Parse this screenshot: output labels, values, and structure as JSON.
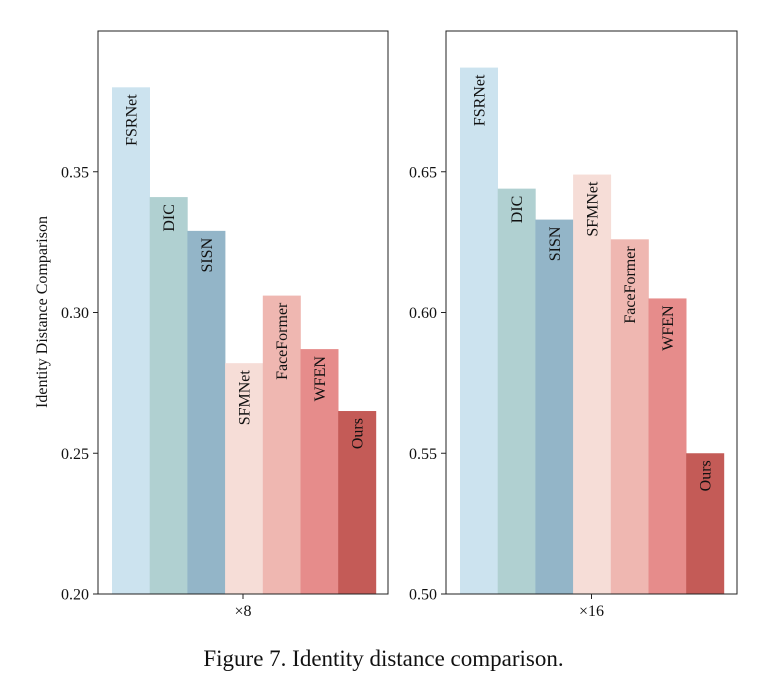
{
  "caption": "Figure 7. Identity distance comparison.",
  "ylabel": "Identity Distance Comparison",
  "chart_data": [
    {
      "type": "bar",
      "xlabel": "×8",
      "ylabel": "Identity Distance Comparison",
      "ylim": [
        0.2,
        0.4
      ],
      "yticks": [
        "0.20",
        "0.25",
        "0.30",
        "0.35"
      ],
      "categories": [
        "FSRNet",
        "DIC",
        "SISN",
        "SFMNet",
        "FaceFormer",
        "WFEN",
        "Ours"
      ],
      "values": [
        0.38,
        0.341,
        0.329,
        0.282,
        0.306,
        0.287,
        0.265
      ],
      "colors": [
        "#cce3ef",
        "#b0d0d1",
        "#93b5c8",
        "#f6ddd7",
        "#efb7b1",
        "#e68c8b",
        "#c45b57"
      ],
      "grid": false,
      "legend": "none"
    },
    {
      "type": "bar",
      "xlabel": "×16",
      "ylabel": "",
      "ylim": [
        0.5,
        0.7
      ],
      "yticks": [
        "0.50",
        "0.55",
        "0.60",
        "0.65"
      ],
      "categories": [
        "FSRNet",
        "DIC",
        "SISN",
        "SFMNet",
        "FaceFormer",
        "WFEN",
        "Ours"
      ],
      "values": [
        0.687,
        0.644,
        0.633,
        0.649,
        0.626,
        0.605,
        0.55
      ],
      "colors": [
        "#cce3ef",
        "#b0d0d1",
        "#93b5c8",
        "#f6ddd7",
        "#efb7b1",
        "#e68c8b",
        "#c45b57"
      ],
      "grid": false,
      "legend": "none"
    }
  ]
}
